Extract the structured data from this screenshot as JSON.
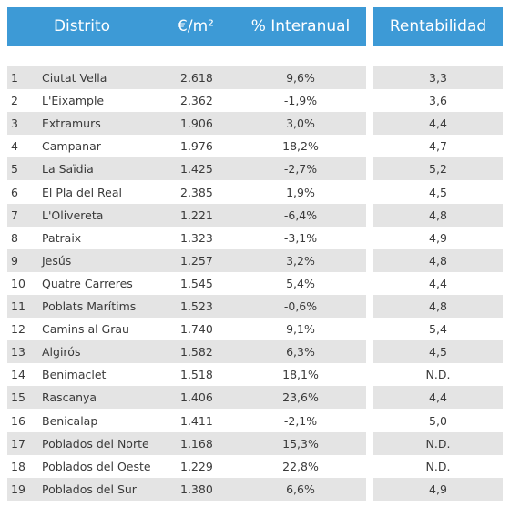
{
  "table": {
    "header": [
      "Distrito",
      "€/m²",
      "% Interanual",
      "Rentabilidad"
    ],
    "rows": [
      [
        "1",
        "Ciutat Vella",
        "2.618",
        "9,6%",
        "3,3"
      ],
      [
        "2",
        "L'Eixample",
        "2.362",
        "-1,9%",
        "3,6"
      ],
      [
        "3",
        "Extramurs",
        "1.906",
        "3,0%",
        "4,4"
      ],
      [
        "4",
        "Campanar",
        "1.976",
        "18,2%",
        "4,7"
      ],
      [
        "5",
        "La Saïdia",
        "1.425",
        "-2,7%",
        "5,2"
      ],
      [
        "6",
        "El Pla del Real",
        "2.385",
        "1,9%",
        "4,5"
      ],
      [
        "7",
        "L'Olivereta",
        "1.221",
        "-6,4%",
        "4,8"
      ],
      [
        "8",
        "Patraix",
        "1.323",
        "-3,1%",
        "4,9"
      ],
      [
        "9",
        "Jesús",
        "1.257",
        "3,2%",
        "4,8"
      ],
      [
        "10",
        "Quatre Carreres",
        "1.545",
        "5,4%",
        "4,4"
      ],
      [
        "11",
        "Poblats Marítims",
        "1.523",
        "-0,6%",
        "4,8"
      ],
      [
        "12",
        "Camins al Grau",
        "1.740",
        "9,1%",
        "5,4"
      ],
      [
        "13",
        "Algirós",
        "1.582",
        "6,3%",
        "4,5"
      ],
      [
        "14",
        "Benimaclet",
        "1.518",
        "18,1%",
        "N.D."
      ],
      [
        "15",
        "Rascanya",
        "1.406",
        "23,6%",
        "4,4"
      ],
      [
        "16",
        "Benicalap",
        "1.411",
        "-2,1%",
        "5,0"
      ],
      [
        "17",
        "Poblados del Norte",
        "1.168",
        "15,3%",
        "N.D."
      ],
      [
        "18",
        "Poblados del Oeste",
        "1.229",
        "22,8%",
        "N.D."
      ],
      [
        "19",
        "Poblados del Sur",
        "1.380",
        "6,6%",
        "4,9"
      ]
    ]
  }
}
